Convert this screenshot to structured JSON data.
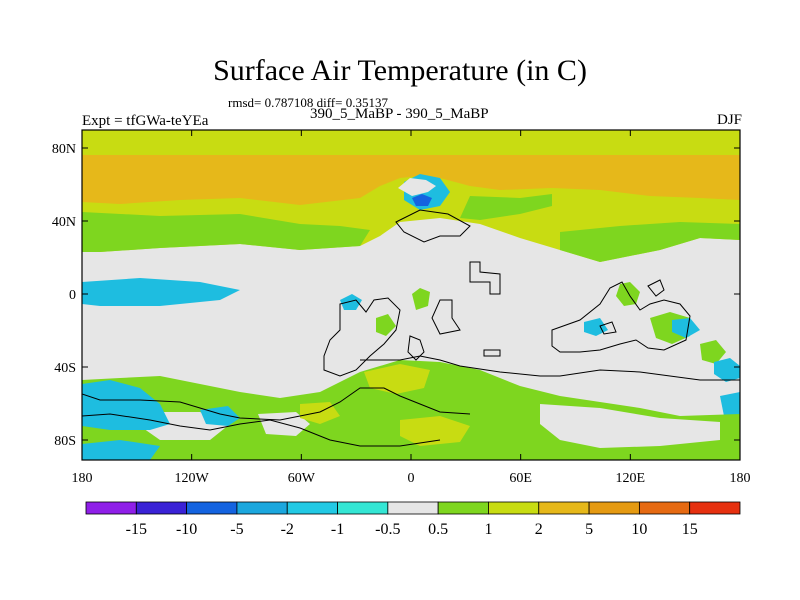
{
  "title": "Surface Air Temperature (in C)",
  "subtitle": "rmsd= 0.787108 diff= 0.35137",
  "left_label": "Expt = tfGWa-teYEa",
  "center_label": "390_5_MaBP - 390_5_MaBP",
  "right_label": "DJF",
  "map": {
    "x_ticks": [
      "180",
      "120W",
      "60W",
      "0",
      "60E",
      "120E",
      "180"
    ],
    "y_ticks": [
      "80N",
      "40N",
      "0",
      "40S",
      "80S"
    ],
    "land_color": "#e6e6e6"
  },
  "colorbar": {
    "labels": [
      "-15",
      "-10",
      "-5",
      "-2",
      "-1",
      "-0.5",
      "0.5",
      "1",
      "2",
      "5",
      "10",
      "15"
    ],
    "colors": [
      "#8f1fe8",
      "#3a22d6",
      "#1463e0",
      "#1ba7de",
      "#22c9e4",
      "#34e6d4",
      "#e6e6e6",
      "#7ed61f",
      "#c8dc12",
      "#e6b81a",
      "#e59a12",
      "#e66a12",
      "#e6300f"
    ]
  },
  "colors": {
    "orange": "#e6b81a",
    "yellow_green": "#c8dc12",
    "green": "#7ed61f",
    "cyan": "#1ebde0",
    "blue": "#1463e0",
    "neutral": "#e6e6e6"
  }
}
